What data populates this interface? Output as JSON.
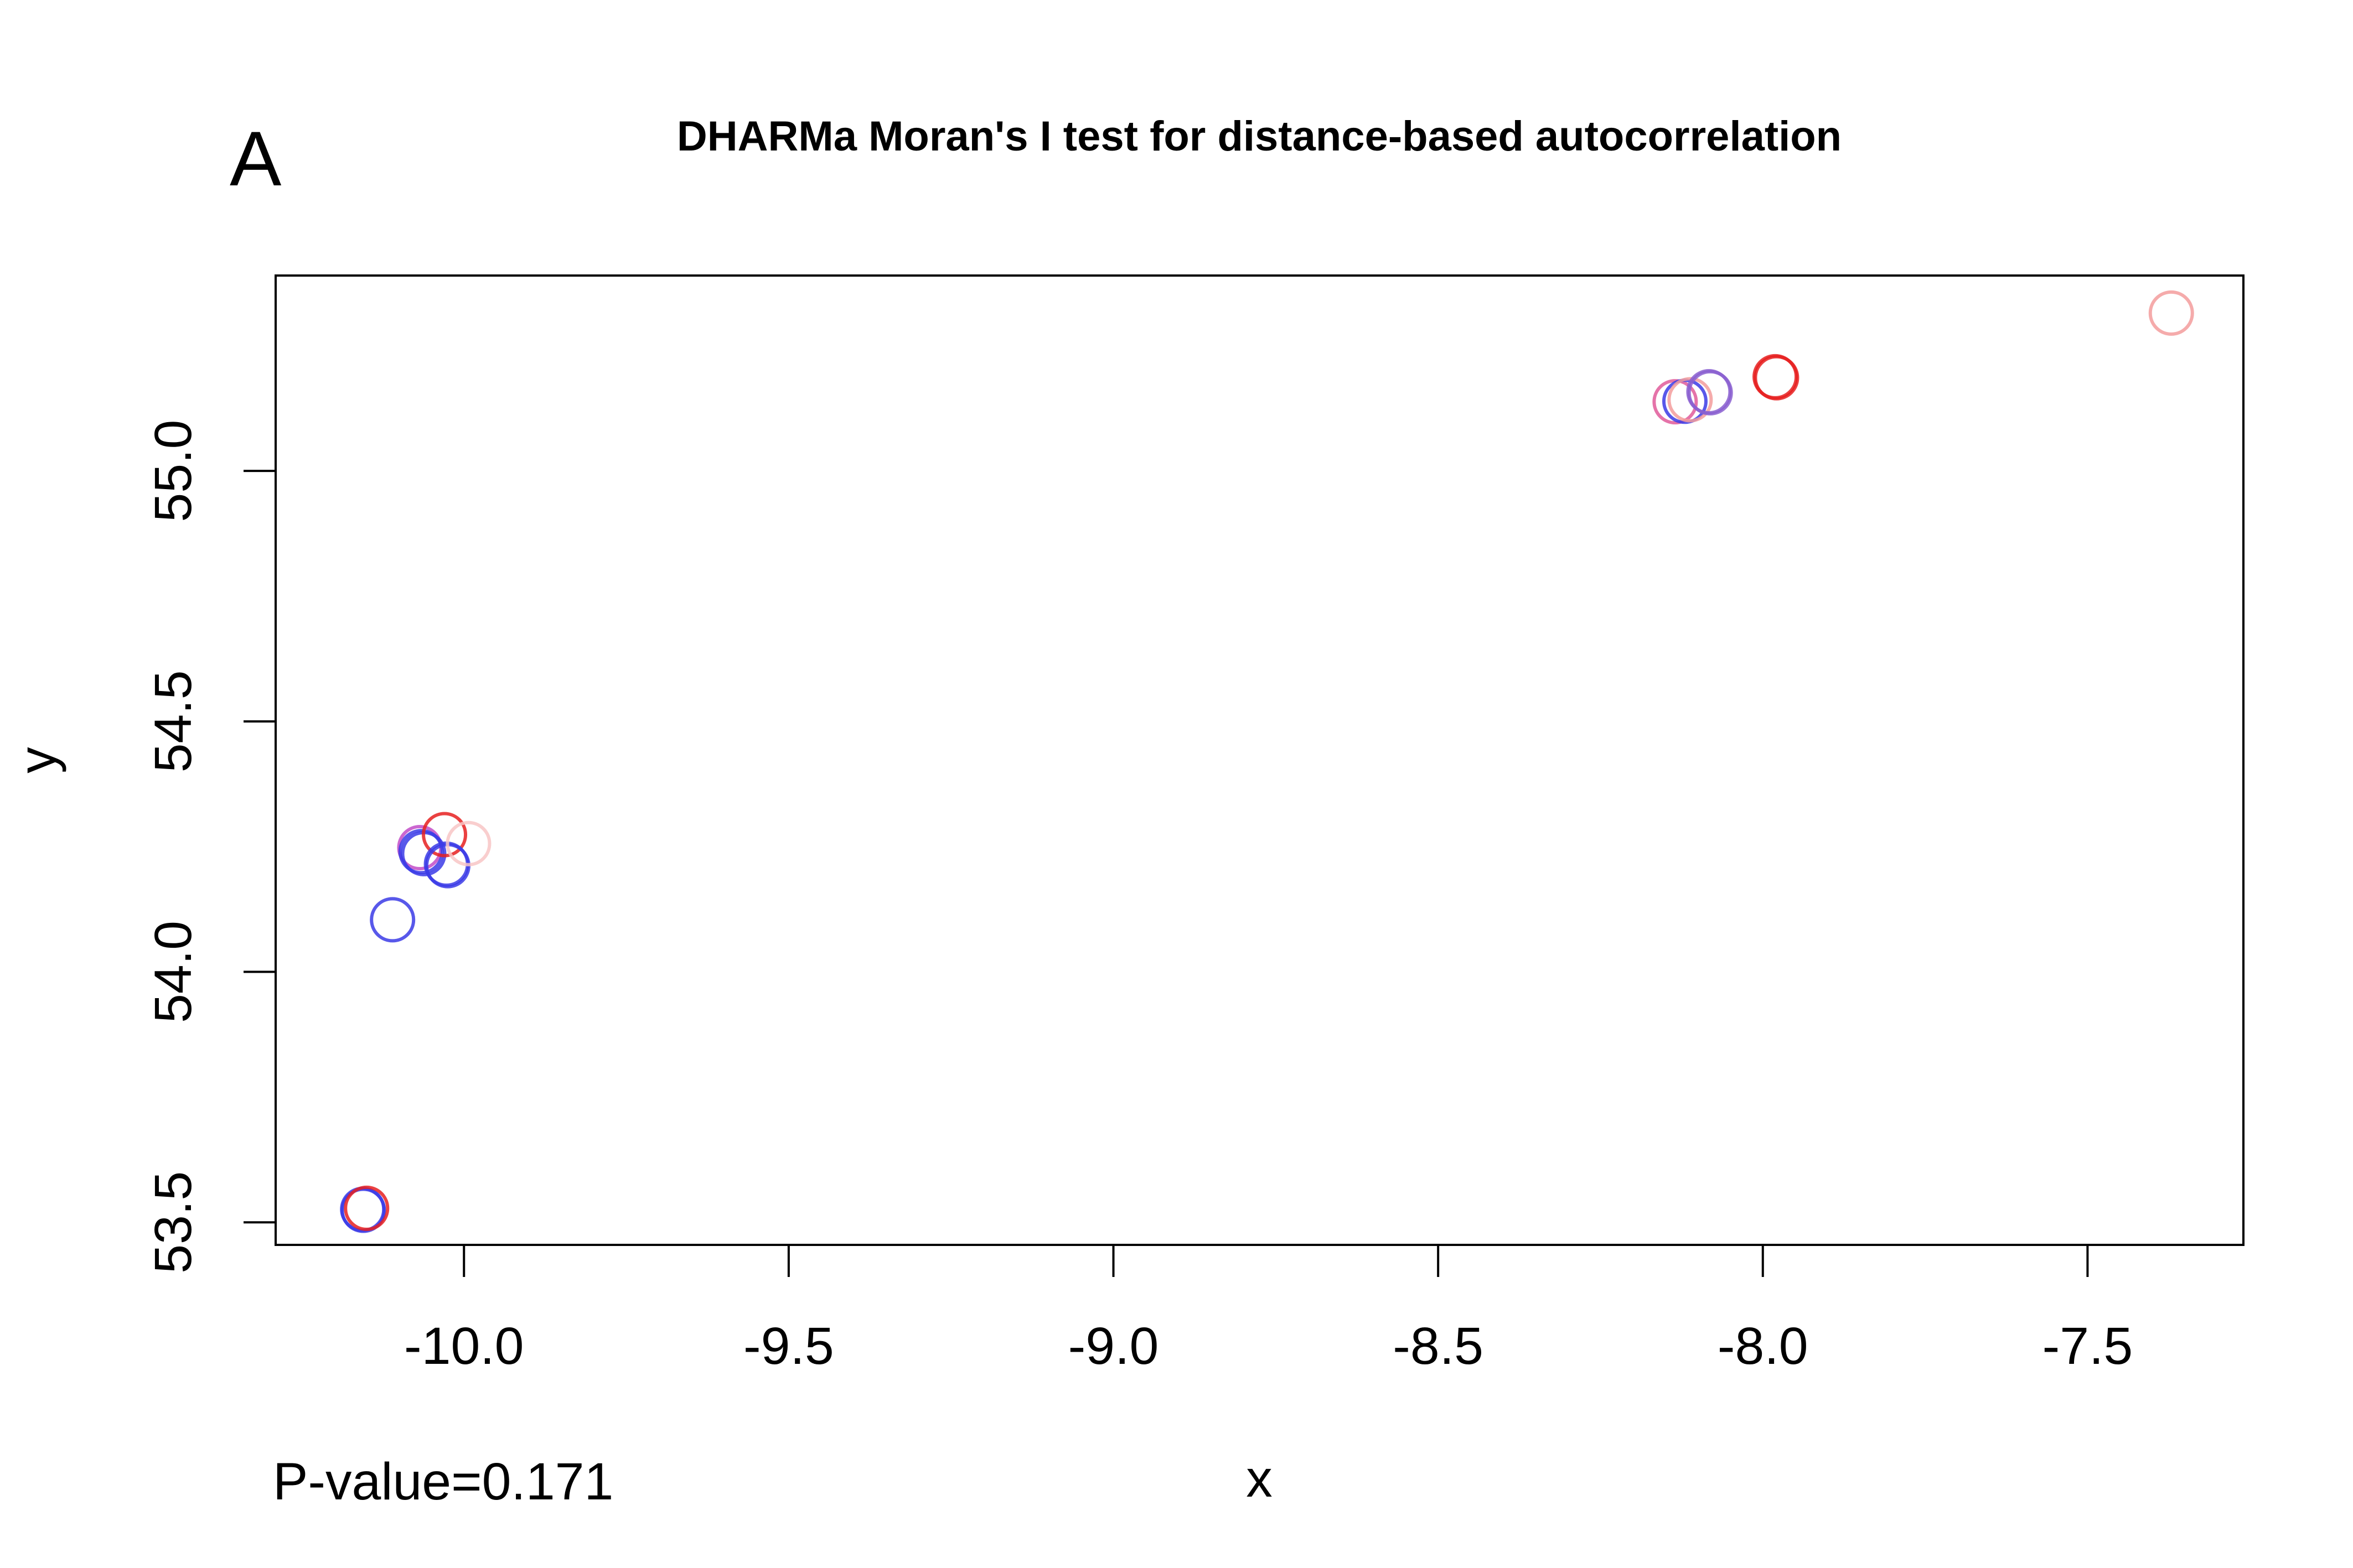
{
  "panel_label": "A",
  "footer_text": "P-value=0.171",
  "chart_data": {
    "type": "scatter",
    "title": "DHARMa Moran's I test for distance-based autocorrelation",
    "xlabel": "x",
    "ylabel": "y",
    "xlim": [
      -10.29,
      -7.26
    ],
    "ylim": [
      53.455,
      55.39
    ],
    "xticks": [
      -10.0,
      -9.5,
      -9.0,
      -8.5,
      -8.0,
      -7.5
    ],
    "xtick_labels": [
      "-10.0",
      "-9.5",
      "-9.0",
      "-8.5",
      "-8.0",
      "-7.5"
    ],
    "yticks": [
      53.5,
      54.0,
      54.5,
      55.0
    ],
    "ytick_labels": [
      "53.5",
      "54.0",
      "54.5",
      "55.0"
    ],
    "grid": false,
    "legend": "none",
    "colors": {
      "blue": "#3b3be6",
      "red": "#e62020",
      "pink": "#f39c9c",
      "light_pink": "#f8c6c6",
      "purple": "#8a5fd0",
      "violet": "#c24cc8",
      "magenta": "#e05a9a"
    },
    "points": [
      {
        "x": -10.156,
        "y": 53.526,
        "color": "blue"
      },
      {
        "x": -10.155,
        "y": 53.524,
        "color": "blue"
      },
      {
        "x": -10.15,
        "y": 53.528,
        "color": "red"
      },
      {
        "x": -10.11,
        "y": 54.104,
        "color": "blue"
      },
      {
        "x": -10.068,
        "y": 54.248,
        "color": "violet"
      },
      {
        "x": -10.066,
        "y": 54.24,
        "color": "blue"
      },
      {
        "x": -10.062,
        "y": 54.236,
        "color": "blue"
      },
      {
        "x": -10.03,
        "y": 54.274,
        "color": "red"
      },
      {
        "x": -10.027,
        "y": 54.215,
        "color": "blue"
      },
      {
        "x": -10.025,
        "y": 54.212,
        "color": "blue"
      },
      {
        "x": -9.993,
        "y": 54.256,
        "color": "light_pink"
      },
      {
        "x": -8.135,
        "y": 55.138,
        "color": "magenta"
      },
      {
        "x": -8.12,
        "y": 55.139,
        "color": "blue"
      },
      {
        "x": -8.112,
        "y": 55.142,
        "color": "pink"
      },
      {
        "x": -8.083,
        "y": 55.158,
        "color": "purple"
      },
      {
        "x": -8.081,
        "y": 55.156,
        "color": "purple"
      },
      {
        "x": -7.981,
        "y": 55.188,
        "color": "red"
      },
      {
        "x": -7.979,
        "y": 55.186,
        "color": "red"
      },
      {
        "x": -7.371,
        "y": 55.315,
        "color": "pink"
      }
    ]
  }
}
